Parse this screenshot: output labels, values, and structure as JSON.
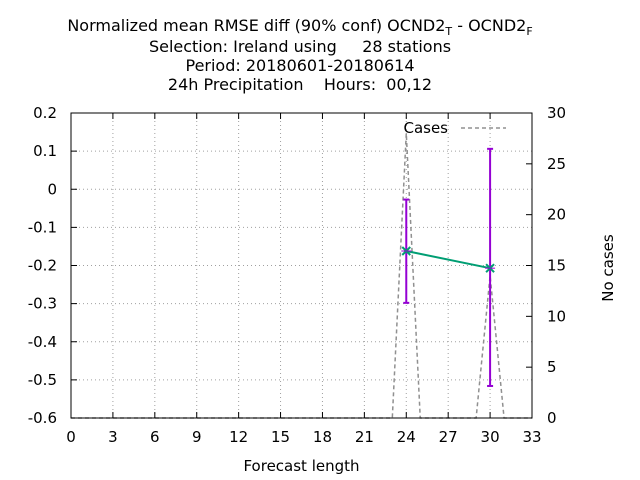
{
  "title": {
    "line1": {
      "prefix": "Normalized mean RMSE diff (90% conf) OCND2",
      "sub1": "T",
      "middle": " - OCND2",
      "sub2": "F"
    },
    "line2": "Selection: Ireland using     28 stations",
    "line3": "Period: 20180601-20180614",
    "line4": "24h Precipitation    Hours:  00,12"
  },
  "chart_data": {
    "type": "line",
    "xlabel": "Forecast length",
    "ylabel": "",
    "y2label": "No cases",
    "xlim": [
      0,
      33
    ],
    "ylim": [
      -0.6,
      0.2
    ],
    "y2lim": [
      0,
      30
    ],
    "xticks": [
      0,
      3,
      6,
      9,
      12,
      15,
      18,
      21,
      24,
      27,
      30,
      33
    ],
    "yticks": [
      -0.6,
      -0.5,
      -0.4,
      -0.3,
      -0.2,
      -0.1,
      0,
      0.1,
      0.2
    ],
    "y2ticks": [
      0,
      5,
      10,
      15,
      20,
      25,
      30
    ],
    "grid": true,
    "legend": {
      "position": "top-right",
      "entries": [
        "Cases"
      ]
    },
    "series": [
      {
        "style": "line-errorbars",
        "color": "#009e73",
        "errorbar_color": "#9400d3",
        "points": [
          {
            "x": 24,
            "y": -0.162,
            "low": -0.298,
            "high": -0.027
          },
          {
            "x": 30,
            "y": -0.207,
            "low": -0.516,
            "high": 0.106
          }
        ]
      },
      {
        "name": "Cases",
        "axis": "y2",
        "style": "dashed",
        "color": "#909090",
        "x": [
          0,
          23,
          24,
          25,
          29,
          30,
          31,
          33
        ],
        "y": [
          0,
          0,
          28,
          0,
          0,
          14,
          0,
          0
        ]
      }
    ]
  }
}
